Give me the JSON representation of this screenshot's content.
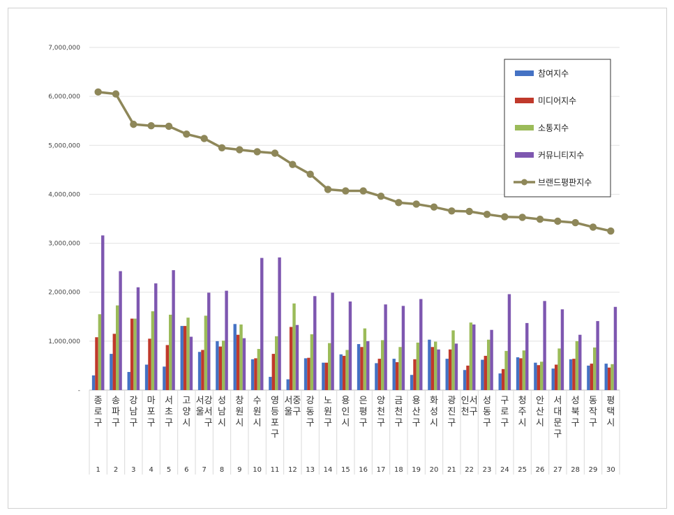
{
  "chart_data": {
    "type": "bar",
    "y_ticks": [
      "-",
      "1,000,000",
      "2,000,000",
      "3,000,000",
      "4,000,000",
      "5,000,000",
      "6,000,000",
      "7,000,000"
    ],
    "ylim": [
      0,
      7000000
    ],
    "grid": true,
    "legend_position": "top-right",
    "categories": [
      "종로구",
      "송파구",
      "강남구",
      "마포구",
      "서초구",
      "고양시",
      "서울 강서구",
      "성남시",
      "창원시",
      "수원시",
      "영등포구",
      "서울 중구",
      "강동구",
      "노원구",
      "용인시",
      "은평구",
      "양천구",
      "금천구",
      "용산구",
      "화성시",
      "광진구",
      "인천 서구",
      "성동구",
      "구로구",
      "청주시",
      "안산시",
      "서대문구",
      "성북구",
      "동작구",
      "평택시"
    ],
    "ranks": [
      "1",
      "2",
      "3",
      "4",
      "5",
      "6",
      "7",
      "8",
      "9",
      "10",
      "11",
      "12",
      "13",
      "14",
      "15",
      "16",
      "17",
      "18",
      "19",
      "20",
      "21",
      "22",
      "23",
      "24",
      "25",
      "26",
      "27",
      "28",
      "29",
      "30"
    ],
    "series": [
      {
        "name": "참여지수",
        "type": "bar",
        "color": "#4472c4",
        "values": [
          300000,
          740000,
          370000,
          520000,
          480000,
          1310000,
          780000,
          1000000,
          1350000,
          630000,
          270000,
          220000,
          650000,
          560000,
          730000,
          940000,
          550000,
          640000,
          310000,
          1030000,
          640000,
          410000,
          620000,
          340000,
          670000,
          560000,
          440000,
          630000,
          500000,
          540000
        ]
      },
      {
        "name": "미디어지수",
        "type": "bar",
        "color": "#c0392b",
        "values": [
          1080000,
          1150000,
          1460000,
          1050000,
          920000,
          1310000,
          820000,
          890000,
          1130000,
          650000,
          740000,
          1290000,
          660000,
          560000,
          700000,
          880000,
          640000,
          570000,
          630000,
          880000,
          830000,
          500000,
          700000,
          430000,
          650000,
          510000,
          520000,
          640000,
          540000,
          460000
        ]
      },
      {
        "name": "소통지수",
        "type": "bar",
        "color": "#9bbb59",
        "values": [
          1550000,
          1730000,
          1460000,
          1610000,
          1540000,
          1480000,
          1520000,
          1010000,
          1340000,
          840000,
          1100000,
          1770000,
          1140000,
          960000,
          820000,
          1260000,
          1020000,
          880000,
          970000,
          990000,
          1220000,
          1380000,
          1030000,
          800000,
          810000,
          580000,
          850000,
          1000000,
          870000,
          530000
        ]
      },
      {
        "name": "커뮤니티지수",
        "type": "bar",
        "color": "#7e57b0",
        "values": [
          3160000,
          2430000,
          2100000,
          2180000,
          2450000,
          1090000,
          1990000,
          2030000,
          1060000,
          2700000,
          2710000,
          1330000,
          1920000,
          1990000,
          1810000,
          1000000,
          1750000,
          1720000,
          1860000,
          830000,
          950000,
          1340000,
          1230000,
          1960000,
          1370000,
          1820000,
          1650000,
          1130000,
          1410000,
          1700000
        ]
      },
      {
        "name": "브랜드평판지수",
        "type": "line",
        "color": "#8e8759",
        "values": [
          6090000,
          6050000,
          5430000,
          5400000,
          5390000,
          5230000,
          5140000,
          4950000,
          4910000,
          4870000,
          4840000,
          4610000,
          4410000,
          4100000,
          4070000,
          4070000,
          3960000,
          3830000,
          3800000,
          3740000,
          3660000,
          3650000,
          3590000,
          3540000,
          3530000,
          3490000,
          3450000,
          3420000,
          3330000,
          3250000
        ]
      }
    ]
  }
}
